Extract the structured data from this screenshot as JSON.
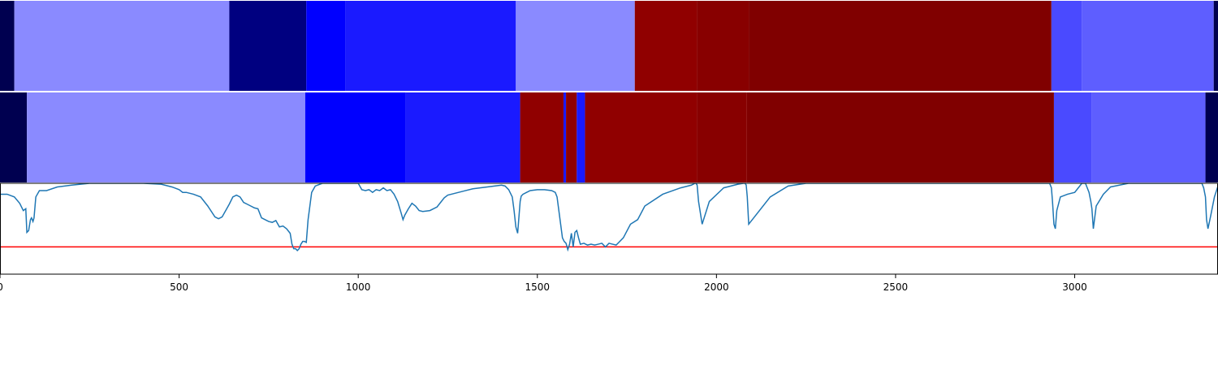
{
  "chart_data": {
    "type": "heatmap",
    "x_range": [
      0,
      3400
    ],
    "x_ticks": [
      0,
      500,
      1000,
      1500,
      2000,
      2500,
      3000
    ],
    "x_tick_labels": [
      "0",
      "500",
      "1000",
      "1500",
      "2000",
      "2500",
      "3000"
    ],
    "tracks": [
      {
        "segments": [
          {
            "start": 0,
            "end": 40,
            "color": "#000050"
          },
          {
            "start": 40,
            "end": 640,
            "color": "#8a8aff"
          },
          {
            "start": 640,
            "end": 855,
            "color": "#000080"
          },
          {
            "start": 855,
            "end": 965,
            "color": "#0000ff"
          },
          {
            "start": 965,
            "end": 1440,
            "color": "#1a1aff"
          },
          {
            "start": 1440,
            "end": 1772,
            "color": "#8a8aff"
          },
          {
            "start": 1772,
            "end": 1945,
            "color": "#900000"
          },
          {
            "start": 1945,
            "end": 2090,
            "color": "#880000"
          },
          {
            "start": 2090,
            "end": 2935,
            "color": "#800000"
          },
          {
            "start": 2935,
            "end": 3020,
            "color": "#4a4aff"
          },
          {
            "start": 3020,
            "end": 3388,
            "color": "#5e5eff"
          },
          {
            "start": 3388,
            "end": 3400,
            "color": "#000050"
          }
        ]
      },
      {
        "segments": [
          {
            "start": 0,
            "end": 75,
            "color": "#000050"
          },
          {
            "start": 75,
            "end": 852,
            "color": "#8a8aff"
          },
          {
            "start": 852,
            "end": 1132,
            "color": "#0000ff"
          },
          {
            "start": 1132,
            "end": 1452,
            "color": "#1a1aff"
          },
          {
            "start": 1452,
            "end": 1573,
            "color": "#900000"
          },
          {
            "start": 1573,
            "end": 1580,
            "color": "#1a1aff"
          },
          {
            "start": 1580,
            "end": 1610,
            "color": "#900000"
          },
          {
            "start": 1610,
            "end": 1633,
            "color": "#1a1aff"
          },
          {
            "start": 1633,
            "end": 1945,
            "color": "#900000"
          },
          {
            "start": 1945,
            "end": 2085,
            "color": "#880000"
          },
          {
            "start": 2085,
            "end": 2942,
            "color": "#800000"
          },
          {
            "start": 2942,
            "end": 3048,
            "color": "#4a4aff"
          },
          {
            "start": 3048,
            "end": 3365,
            "color": "#5e5eff"
          },
          {
            "start": 3365,
            "end": 3400,
            "color": "#000050"
          }
        ]
      }
    ],
    "line": {
      "color": "#1f77b4",
      "y_range": [
        0,
        1
      ],
      "x": [
        0,
        20,
        40,
        55,
        65,
        72,
        75,
        80,
        85,
        88,
        92,
        95,
        100,
        110,
        130,
        160,
        200,
        250,
        300,
        350,
        400,
        450,
        480,
        500,
        510,
        520,
        540,
        560,
        580,
        600,
        610,
        620,
        640,
        650,
        660,
        670,
        680,
        690,
        700,
        710,
        720,
        730,
        740,
        750,
        760,
        770,
        780,
        790,
        800,
        810,
        815,
        820,
        825,
        830,
        835,
        840,
        845,
        850,
        855,
        860,
        870,
        880,
        900,
        940,
        1000,
        1010,
        1020,
        1030,
        1040,
        1050,
        1060,
        1070,
        1080,
        1090,
        1100,
        1110,
        1120,
        1125,
        1130,
        1140,
        1150,
        1160,
        1170,
        1180,
        1200,
        1220,
        1230,
        1240,
        1250,
        1260,
        1280,
        1300,
        1320,
        1340,
        1360,
        1380,
        1400,
        1410,
        1420,
        1430,
        1435,
        1440,
        1445,
        1448,
        1452,
        1455,
        1460,
        1470,
        1480,
        1500,
        1520,
        1540,
        1550,
        1555,
        1560,
        1565,
        1570,
        1575,
        1580,
        1583,
        1585,
        1590,
        1595,
        1600,
        1605,
        1610,
        1615,
        1620,
        1630,
        1640,
        1650,
        1660,
        1670,
        1680,
        1690,
        1700,
        1710,
        1720,
        1740,
        1760,
        1780,
        1800,
        1850,
        1900,
        1930,
        1940,
        1943,
        1946,
        1950,
        1960,
        1980,
        2020,
        2060,
        2075,
        2080,
        2083,
        2086,
        2090,
        2100,
        2150,
        2200,
        2250,
        2300,
        2350,
        2400,
        2450,
        2500,
        2550,
        2600,
        2650,
        2700,
        2750,
        2800,
        2850,
        2900,
        2920,
        2930,
        2935,
        2938,
        2942,
        2946,
        2950,
        2960,
        2980,
        3000,
        3010,
        3020,
        3030,
        3040,
        3045,
        3048,
        3052,
        3060,
        3080,
        3100,
        3150,
        3200,
        3250,
        3300,
        3340,
        3355,
        3360,
        3365,
        3368,
        3372,
        3380,
        3390,
        3400
      ],
      "y": [
        0.88,
        0.88,
        0.85,
        0.78,
        0.7,
        0.72,
        0.46,
        0.48,
        0.6,
        0.62,
        0.58,
        0.62,
        0.85,
        0.92,
        0.92,
        0.96,
        0.98,
        1.0,
        1.0,
        1.0,
        1.0,
        0.99,
        0.96,
        0.93,
        0.9,
        0.9,
        0.88,
        0.85,
        0.75,
        0.63,
        0.61,
        0.63,
        0.77,
        0.85,
        0.87,
        0.85,
        0.79,
        0.77,
        0.75,
        0.73,
        0.72,
        0.62,
        0.6,
        0.58,
        0.57,
        0.59,
        0.52,
        0.53,
        0.5,
        0.45,
        0.33,
        0.28,
        0.28,
        0.26,
        0.28,
        0.33,
        0.36,
        0.36,
        0.35,
        0.6,
        0.9,
        0.97,
        1.0,
        1.0,
        1.0,
        0.93,
        0.92,
        0.93,
        0.9,
        0.93,
        0.92,
        0.95,
        0.92,
        0.93,
        0.88,
        0.8,
        0.67,
        0.6,
        0.65,
        0.72,
        0.78,
        0.75,
        0.7,
        0.69,
        0.7,
        0.74,
        0.79,
        0.84,
        0.87,
        0.88,
        0.9,
        0.92,
        0.94,
        0.95,
        0.96,
        0.97,
        0.98,
        0.97,
        0.93,
        0.85,
        0.7,
        0.52,
        0.45,
        0.6,
        0.8,
        0.86,
        0.88,
        0.9,
        0.92,
        0.93,
        0.93,
        0.92,
        0.9,
        0.85,
        0.7,
        0.55,
        0.4,
        0.36,
        0.34,
        0.3,
        0.27,
        0.33,
        0.45,
        0.3,
        0.46,
        0.48,
        0.4,
        0.33,
        0.34,
        0.32,
        0.33,
        0.32,
        0.33,
        0.34,
        0.3,
        0.34,
        0.33,
        0.32,
        0.4,
        0.55,
        0.6,
        0.75,
        0.88,
        0.95,
        0.98,
        1.0,
        1.0,
        0.98,
        0.8,
        0.55,
        0.8,
        0.95,
        0.99,
        1.0,
        1.0,
        0.98,
        0.85,
        0.55,
        0.6,
        0.85,
        0.97,
        1.0,
        1.0,
        1.0,
        1.0,
        1.0,
        1.0,
        1.0,
        1.0,
        1.0,
        1.0,
        1.0,
        1.0,
        1.0,
        1.0,
        1.0,
        1.0,
        0.95,
        0.8,
        0.55,
        0.5,
        0.7,
        0.85,
        0.88,
        0.9,
        0.95,
        1.0,
        1.0,
        0.9,
        0.8,
        0.72,
        0.5,
        0.75,
        0.88,
        0.96,
        1.0,
        1.0,
        1.0,
        1.0,
        1.0,
        1.0,
        0.95,
        0.85,
        0.6,
        0.5,
        0.65,
        0.85,
        0.97,
        1.0
      ]
    },
    "threshold": {
      "value": 0.3,
      "color": "#ff0000"
    }
  }
}
